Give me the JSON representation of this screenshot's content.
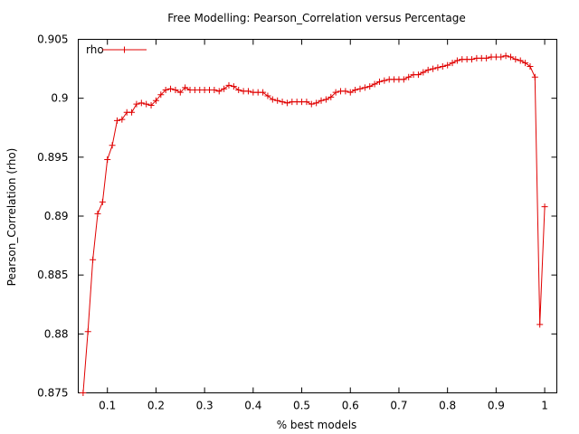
{
  "chart_data": {
    "type": "line",
    "title": "Free Modelling: Pearson_Correlation versus Percentage",
    "xlabel": "% best models",
    "ylabel": "Pearson_Correlation (rho)",
    "xlim": [
      0.04,
      1.025
    ],
    "ylim": [
      0.875,
      0.905
    ],
    "xticks": [
      "0.1",
      "0.2",
      "0.3",
      "0.4",
      "0.5",
      "0.6",
      "0.7",
      "0.8",
      "0.9",
      "1"
    ],
    "yticks": [
      "0.875",
      "0.88",
      "0.885",
      "0.89",
      "0.895",
      "0.9",
      "0.905"
    ],
    "grid": false,
    "legend_position": "top-left",
    "series": [
      {
        "name": "rho",
        "color": "#e00000",
        "marker": "plus",
        "x": [
          0.05,
          0.06,
          0.07,
          0.08,
          0.09,
          0.1,
          0.11,
          0.12,
          0.13,
          0.14,
          0.15,
          0.16,
          0.17,
          0.18,
          0.19,
          0.2,
          0.21,
          0.22,
          0.23,
          0.24,
          0.25,
          0.26,
          0.27,
          0.28,
          0.29,
          0.3,
          0.31,
          0.32,
          0.33,
          0.34,
          0.35,
          0.36,
          0.37,
          0.38,
          0.39,
          0.4,
          0.41,
          0.42,
          0.43,
          0.44,
          0.45,
          0.46,
          0.47,
          0.48,
          0.49,
          0.5,
          0.51,
          0.52,
          0.53,
          0.54,
          0.55,
          0.56,
          0.57,
          0.58,
          0.59,
          0.6,
          0.61,
          0.62,
          0.63,
          0.64,
          0.65,
          0.66,
          0.67,
          0.68,
          0.69,
          0.7,
          0.71,
          0.72,
          0.73,
          0.74,
          0.75,
          0.76,
          0.77,
          0.78,
          0.79,
          0.8,
          0.81,
          0.82,
          0.83,
          0.84,
          0.85,
          0.86,
          0.87,
          0.88,
          0.89,
          0.9,
          0.91,
          0.92,
          0.93,
          0.94,
          0.95,
          0.96,
          0.97,
          0.98,
          0.99,
          1.0
        ],
        "y": [
          0.875,
          0.8802,
          0.8863,
          0.8902,
          0.8912,
          0.8948,
          0.896,
          0.8981,
          0.8982,
          0.8988,
          0.8988,
          0.8995,
          0.8996,
          0.8995,
          0.8994,
          0.8998,
          0.9003,
          0.9007,
          0.9008,
          0.9007,
          0.9005,
          0.9009,
          0.9007,
          0.9007,
          0.9007,
          0.9007,
          0.9007,
          0.9007,
          0.9006,
          0.9008,
          0.9011,
          0.901,
          0.9007,
          0.9006,
          0.9006,
          0.9005,
          0.9005,
          0.9005,
          0.9002,
          0.8999,
          0.8998,
          0.8997,
          0.8996,
          0.8997,
          0.8997,
          0.8997,
          0.8997,
          0.8995,
          0.8996,
          0.8998,
          0.8999,
          0.9001,
          0.9005,
          0.9006,
          0.9006,
          0.9005,
          0.9007,
          0.9008,
          0.9009,
          0.901,
          0.9012,
          0.9014,
          0.9015,
          0.9016,
          0.9016,
          0.9016,
          0.9016,
          0.9018,
          0.902,
          0.902,
          0.9022,
          0.9024,
          0.9025,
          0.9026,
          0.9027,
          0.9028,
          0.903,
          0.9032,
          0.9033,
          0.9033,
          0.9033,
          0.9034,
          0.9034,
          0.9034,
          0.9035,
          0.9035,
          0.9035,
          0.9036,
          0.9035,
          0.9033,
          0.9032,
          0.903,
          0.9027,
          0.9018,
          0.8808,
          0.8908
        ]
      }
    ]
  }
}
